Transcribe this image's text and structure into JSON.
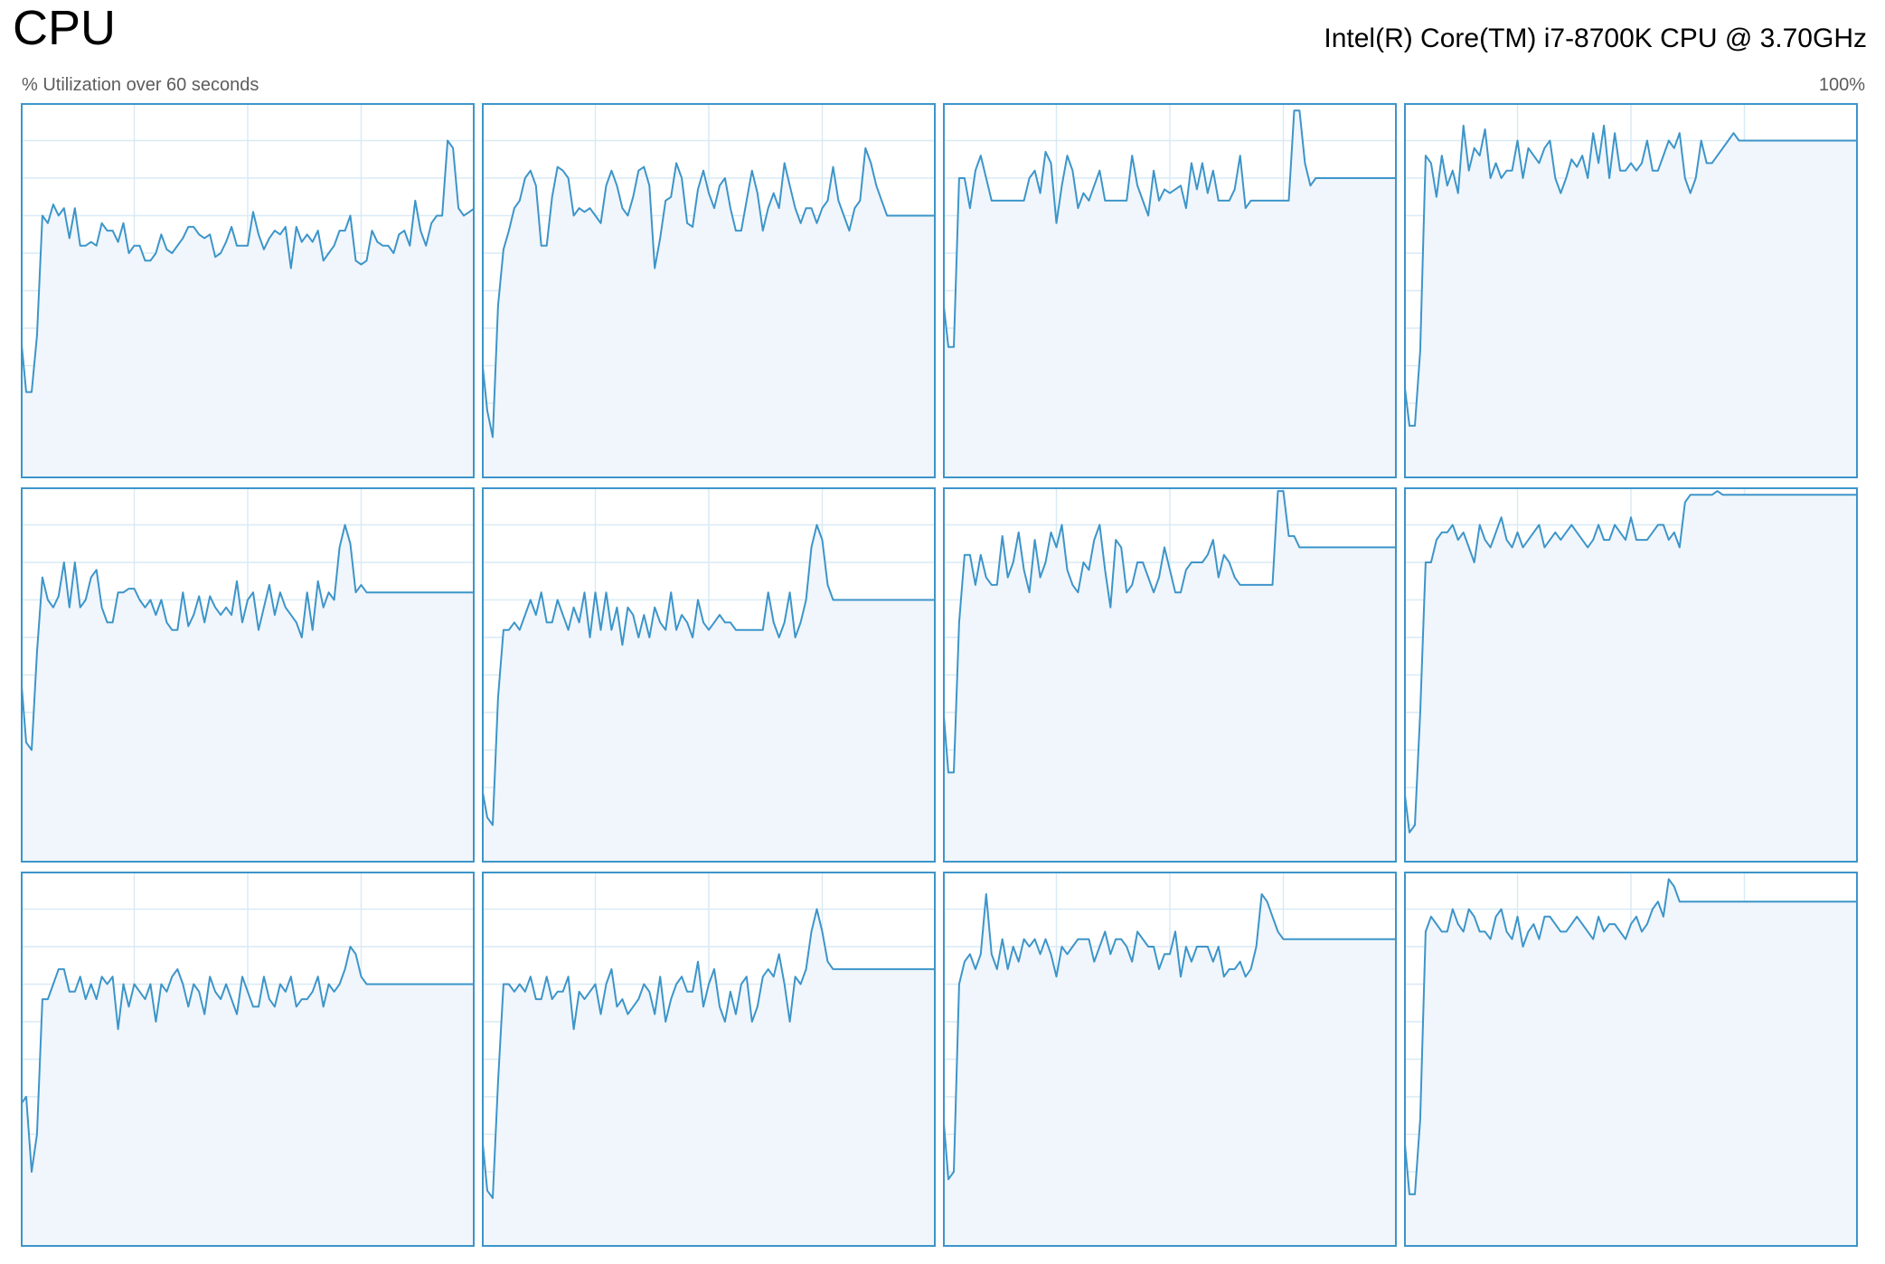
{
  "header": {
    "title": "CPU",
    "cpu_model": "Intel(R) Core(TM) i7-8700K CPU @ 3.70GHz",
    "axis_label": "% Utilization over 60 seconds",
    "axis_max": "100%"
  },
  "colors": {
    "line": "#3d95c9",
    "fill": "#f0f6fb",
    "grid": "#d9eaf5",
    "border": "#3d95c9"
  },
  "chart_data": {
    "type": "line",
    "ylim": [
      0,
      100
    ],
    "xlim": [
      60,
      0
    ],
    "grid": true,
    "series": [
      {
        "values": [
          38,
          23,
          23,
          38,
          70,
          68,
          73,
          70,
          72,
          64,
          72,
          62,
          62,
          63,
          62,
          68,
          66,
          66,
          63,
          68,
          60,
          62,
          62,
          58,
          58,
          60,
          65,
          61,
          60,
          62,
          64,
          67,
          67,
          65,
          64,
          65,
          59,
          60,
          63,
          67,
          62,
          62,
          62,
          71,
          65,
          61,
          64,
          66,
          65,
          67,
          56,
          67,
          63,
          65,
          63,
          66,
          58,
          60,
          62,
          66,
          66,
          70,
          58,
          57,
          58,
          66,
          63,
          62,
          62,
          60,
          65,
          66,
          62,
          74,
          66,
          62,
          68,
          70,
          70,
          90,
          88,
          72,
          70,
          71,
          72
        ]
      },
      {
        "values": [
          32,
          18,
          11,
          46,
          61,
          66,
          72,
          74,
          80,
          82,
          78,
          62,
          62,
          75,
          83,
          82,
          80,
          70,
          72,
          71,
          72,
          70,
          68,
          78,
          82,
          78,
          72,
          70,
          75,
          82,
          83,
          78,
          56,
          64,
          74,
          75,
          84,
          80,
          68,
          67,
          77,
          82,
          76,
          72,
          78,
          80,
          72,
          66,
          66,
          74,
          82,
          76,
          66,
          72,
          76,
          72,
          84,
          78,
          72,
          68,
          72,
          72,
          68,
          72,
          74,
          83,
          74,
          70,
          66,
          72,
          74,
          88,
          84,
          78,
          74,
          70,
          70,
          70,
          70,
          70,
          70,
          70,
          70,
          70,
          70
        ]
      },
      {
        "values": [
          48,
          35,
          35,
          80,
          80,
          72,
          82,
          86,
          80,
          74,
          74,
          74,
          74,
          74,
          74,
          74,
          80,
          82,
          76,
          87,
          84,
          68,
          78,
          86,
          82,
          72,
          76,
          74,
          78,
          82,
          74,
          74,
          74,
          74,
          74,
          86,
          78,
          74,
          70,
          82,
          74,
          77,
          76,
          77,
          78,
          72,
          84,
          77,
          84,
          76,
          82,
          74,
          74,
          74,
          77,
          86,
          72,
          74,
          74,
          74,
          74,
          74,
          74,
          74,
          74,
          98,
          98,
          84,
          78,
          80,
          80,
          80,
          80,
          80,
          80,
          80,
          80,
          80,
          80,
          80,
          80,
          80,
          80,
          80,
          80
        ]
      },
      {
        "values": [
          26,
          14,
          14,
          34,
          86,
          84,
          75,
          86,
          78,
          82,
          76,
          94,
          82,
          88,
          86,
          93,
          80,
          84,
          80,
          82,
          82,
          90,
          80,
          88,
          86,
          84,
          88,
          90,
          80,
          76,
          80,
          85,
          83,
          86,
          80,
          92,
          84,
          94,
          80,
          92,
          82,
          82,
          84,
          82,
          84,
          90,
          82,
          82,
          86,
          90,
          88,
          92,
          80,
          76,
          80,
          90,
          84,
          84,
          86,
          88,
          90,
          92,
          90,
          90,
          90,
          90,
          90,
          90,
          90,
          90,
          90,
          90,
          90,
          90,
          90,
          90,
          90,
          90,
          90,
          90,
          90,
          90,
          90,
          90,
          90
        ]
      },
      {
        "values": [
          50,
          32,
          30,
          56,
          76,
          70,
          68,
          71,
          80,
          68,
          80,
          68,
          70,
          76,
          78,
          68,
          64,
          64,
          72,
          72,
          73,
          73,
          70,
          68,
          70,
          66,
          70,
          64,
          62,
          62,
          72,
          63,
          66,
          71,
          64,
          71,
          68,
          66,
          68,
          66,
          75,
          64,
          70,
          72,
          62,
          68,
          74,
          66,
          72,
          68,
          66,
          64,
          60,
          72,
          62,
          75,
          68,
          72,
          70,
          84,
          90,
          85,
          72,
          74,
          72,
          72,
          72,
          72,
          72,
          72,
          72,
          72,
          72,
          72,
          72,
          72,
          72,
          72,
          72,
          72,
          72,
          72,
          72,
          72,
          72
        ]
      },
      {
        "values": [
          20,
          12,
          10,
          44,
          62,
          62,
          64,
          62,
          66,
          70,
          66,
          72,
          64,
          64,
          70,
          66,
          62,
          68,
          64,
          72,
          60,
          72,
          62,
          72,
          62,
          68,
          58,
          68,
          66,
          60,
          66,
          60,
          68,
          64,
          62,
          72,
          62,
          66,
          64,
          60,
          70,
          64,
          62,
          64,
          66,
          64,
          64,
          62,
          62,
          62,
          62,
          62,
          62,
          72,
          64,
          60,
          64,
          72,
          60,
          64,
          70,
          84,
          90,
          86,
          74,
          70,
          70,
          70,
          70,
          70,
          70,
          70,
          70,
          70,
          70,
          70,
          70,
          70,
          70,
          70,
          70,
          70,
          70,
          70,
          70
        ]
      },
      {
        "values": [
          42,
          24,
          24,
          64,
          82,
          82,
          74,
          82,
          76,
          74,
          74,
          87,
          76,
          80,
          88,
          78,
          72,
          86,
          76,
          80,
          88,
          84,
          90,
          78,
          74,
          72,
          80,
          78,
          86,
          90,
          78,
          68,
          86,
          84,
          72,
          74,
          80,
          80,
          76,
          72,
          76,
          84,
          78,
          72,
          72,
          78,
          80,
          80,
          80,
          82,
          86,
          76,
          82,
          80,
          76,
          74,
          74,
          74,
          74,
          74,
          74,
          74,
          99,
          99,
          87,
          87,
          84,
          84,
          84,
          84,
          84,
          84,
          84,
          84,
          84,
          84,
          84,
          84,
          84,
          84,
          84,
          84,
          84,
          84,
          84
        ]
      },
      {
        "values": [
          20,
          8,
          10,
          40,
          80,
          80,
          86,
          88,
          88,
          90,
          86,
          88,
          84,
          80,
          90,
          86,
          84,
          88,
          92,
          86,
          84,
          88,
          84,
          86,
          88,
          90,
          84,
          86,
          88,
          86,
          88,
          90,
          88,
          86,
          84,
          86,
          90,
          86,
          86,
          90,
          88,
          86,
          92,
          86,
          86,
          86,
          88,
          90,
          90,
          86,
          88,
          84,
          96,
          98,
          98,
          98,
          98,
          98,
          99,
          98,
          98,
          98,
          98,
          98,
          98,
          98,
          98,
          98,
          98,
          98,
          98,
          98,
          98,
          98,
          98,
          98,
          98,
          98,
          98,
          98,
          98,
          98,
          98,
          98,
          98
        ]
      },
      {
        "values": [
          38,
          40,
          20,
          30,
          66,
          66,
          70,
          74,
          74,
          68,
          68,
          72,
          66,
          70,
          66,
          72,
          70,
          72,
          58,
          70,
          64,
          70,
          68,
          66,
          70,
          60,
          70,
          68,
          72,
          74,
          70,
          64,
          70,
          68,
          62,
          72,
          68,
          66,
          70,
          66,
          62,
          72,
          68,
          64,
          64,
          72,
          66,
          64,
          70,
          68,
          72,
          64,
          66,
          66,
          68,
          72,
          64,
          70,
          68,
          70,
          74,
          80,
          78,
          72,
          70,
          70,
          70,
          70,
          70,
          70,
          70,
          70,
          70,
          70,
          70,
          70,
          70,
          70,
          70,
          70,
          70,
          70,
          70,
          70,
          70
        ]
      },
      {
        "values": [
          30,
          15,
          13,
          44,
          70,
          70,
          68,
          70,
          68,
          72,
          66,
          66,
          72,
          66,
          68,
          68,
          72,
          58,
          68,
          66,
          68,
          70,
          62,
          70,
          74,
          64,
          66,
          62,
          64,
          66,
          70,
          68,
          62,
          72,
          60,
          66,
          70,
          72,
          68,
          68,
          76,
          64,
          70,
          74,
          64,
          60,
          68,
          62,
          70,
          72,
          60,
          64,
          72,
          74,
          72,
          78,
          70,
          60,
          72,
          70,
          74,
          84,
          90,
          84,
          76,
          74,
          74,
          74,
          74,
          74,
          74,
          74,
          74,
          74,
          74,
          74,
          74,
          74,
          74,
          74,
          74,
          74,
          74,
          74,
          74
        ]
      },
      {
        "values": [
          36,
          18,
          20,
          70,
          76,
          78,
          74,
          78,
          94,
          78,
          74,
          82,
          74,
          80,
          76,
          82,
          80,
          82,
          78,
          82,
          78,
          72,
          80,
          78,
          80,
          82,
          82,
          82,
          76,
          80,
          84,
          78,
          82,
          82,
          80,
          76,
          84,
          82,
          80,
          80,
          74,
          78,
          78,
          84,
          72,
          80,
          76,
          80,
          80,
          80,
          76,
          80,
          72,
          74,
          74,
          76,
          72,
          74,
          80,
          94,
          92,
          88,
          84,
          82,
          82,
          82,
          82,
          82,
          82,
          82,
          82,
          82,
          82,
          82,
          82,
          82,
          82,
          82,
          82,
          82,
          82,
          82,
          82,
          82,
          82
        ]
      },
      {
        "values": [
          30,
          14,
          14,
          34,
          84,
          88,
          86,
          84,
          84,
          90,
          86,
          84,
          90,
          88,
          84,
          84,
          82,
          88,
          90,
          84,
          82,
          88,
          80,
          84,
          86,
          82,
          88,
          88,
          86,
          84,
          84,
          86,
          88,
          86,
          84,
          82,
          88,
          84,
          86,
          86,
          84,
          82,
          86,
          88,
          84,
          86,
          90,
          92,
          88,
          98,
          96,
          92,
          92,
          92,
          92,
          92,
          92,
          92,
          92,
          92,
          92,
          92,
          92,
          92,
          92,
          92,
          92,
          92,
          92,
          92,
          92,
          92,
          92,
          92,
          92,
          92,
          92,
          92,
          92,
          92,
          92,
          92,
          92,
          92,
          92
        ]
      }
    ]
  }
}
